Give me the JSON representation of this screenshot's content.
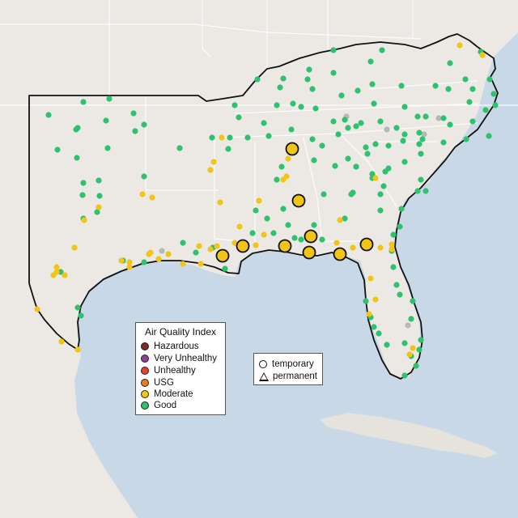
{
  "legend": {
    "title": "Air Quality Index",
    "categories": [
      {
        "label": "Hazardous",
        "color": "#7e2a27"
      },
      {
        "label": "Very Unhealthy",
        "color": "#8f3f97"
      },
      {
        "label": "Unhealthy",
        "color": "#e8402a"
      },
      {
        "label": "USG",
        "color": "#e97b1d"
      },
      {
        "label": "Moderate",
        "color": "#f2c416"
      },
      {
        "label": "Good",
        "color": "#2ec26f"
      }
    ]
  },
  "monitor_types": {
    "temporary": "temporary",
    "permanent": "permanent"
  },
  "colors": {
    "water": "#c9d8e6",
    "land": "#ece9e4",
    "cuba": "#e6e2dc",
    "border": "#111111",
    "state_line": "#ffffff",
    "inactive": "#b8b8b8"
  }
}
